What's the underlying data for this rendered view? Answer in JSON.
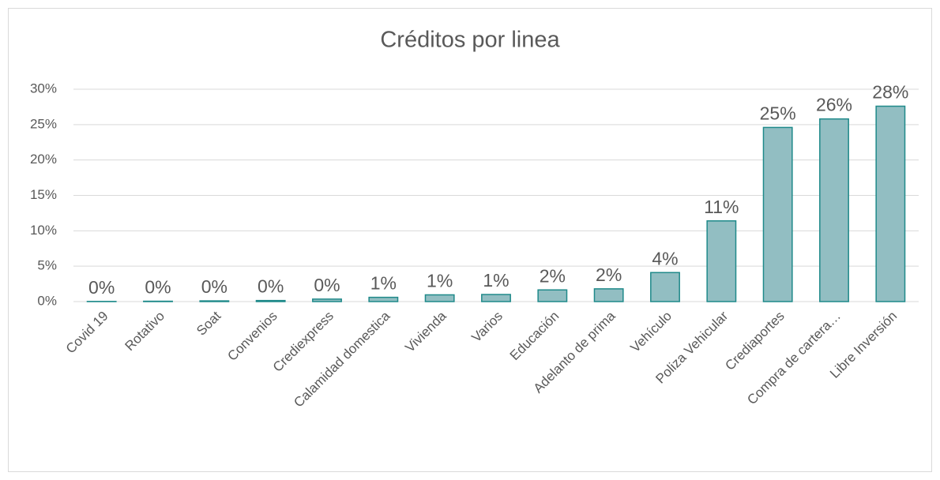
{
  "chart_data": {
    "type": "bar",
    "title": "Créditos por linea",
    "categories": [
      "Covid 19",
      "Rotativo",
      "Soat",
      "Convenios",
      "Crediexpress",
      "Calamidad domestica",
      "Vivienda",
      "Varios",
      "Educación",
      "Adelanto de prima",
      "Vehículo",
      "Poliza Vehicular",
      "Crediaportes",
      "Compra de cartera…",
      "Libre Inversión"
    ],
    "values": [
      0.02,
      0.05,
      0.1,
      0.15,
      0.35,
      0.6,
      0.95,
      1.0,
      1.65,
      1.8,
      4.1,
      11.4,
      24.6,
      25.8,
      27.6
    ],
    "value_labels": [
      "0%",
      "0%",
      "0%",
      "0%",
      "0%",
      "1%",
      "1%",
      "1%",
      "2%",
      "2%",
      "4%",
      "11%",
      "25%",
      "26%",
      "28%"
    ],
    "color": "#92bec2",
    "edge_color": "#1f8a8a",
    "ylim": [
      0,
      30
    ],
    "yticks": [
      {
        "value": 0,
        "label": "0%"
      },
      {
        "value": 5,
        "label": "5%"
      },
      {
        "value": 10,
        "label": "10%"
      },
      {
        "value": 15,
        "label": "15%"
      },
      {
        "value": 20,
        "label": "20%"
      },
      {
        "value": 25,
        "label": "25%"
      },
      {
        "value": 30,
        "label": "30%"
      }
    ],
    "grid": true
  }
}
